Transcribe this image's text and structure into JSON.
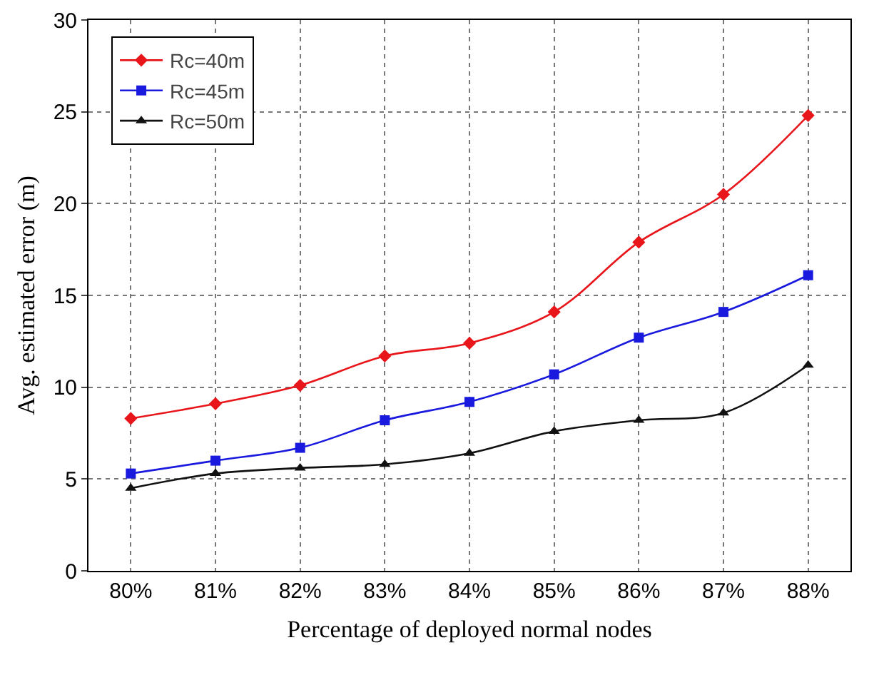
{
  "chart_data": {
    "type": "line",
    "xlabel": "Percentage of deployed normal nodes",
    "ylabel": "Avg. estimated error (m)",
    "categories": [
      "80%",
      "81%",
      "82%",
      "83%",
      "84%",
      "85%",
      "86%",
      "87%",
      "88%"
    ],
    "series": [
      {
        "name": "Rc=40m",
        "color": "#e8151b",
        "marker": "diamond",
        "values": [
          8.3,
          9.1,
          10.1,
          11.7,
          12.4,
          14.1,
          17.9,
          20.5,
          24.8
        ]
      },
      {
        "name": "Rc=45m",
        "color": "#1a1adf",
        "marker": "square",
        "values": [
          5.3,
          6.0,
          6.7,
          8.2,
          9.2,
          10.7,
          12.7,
          14.1,
          16.1
        ]
      },
      {
        "name": "Rc=50m",
        "color": "#111111",
        "marker": "triangle",
        "values": [
          4.5,
          5.3,
          5.6,
          5.8,
          6.4,
          7.6,
          8.2,
          8.6,
          11.2
        ]
      }
    ],
    "ylim": [
      0,
      30
    ],
    "yticks": [
      0,
      5,
      10,
      15,
      20,
      25,
      30
    ],
    "grid": true,
    "legend": "top left",
    "line_style": "solid"
  }
}
